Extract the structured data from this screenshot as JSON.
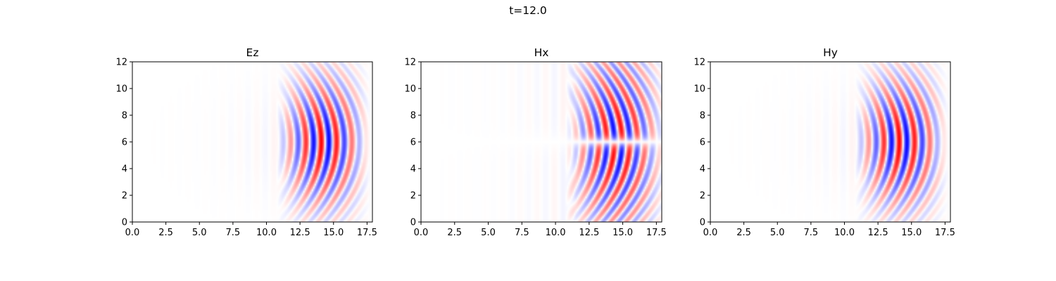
{
  "figure": {
    "suptitle": "t=12.0"
  },
  "chart_data": [
    {
      "type": "heatmap",
      "title": "Ez",
      "xlabel": "",
      "ylabel": "",
      "xlim": [
        0,
        17.9
      ],
      "ylim": [
        0,
        12
      ],
      "xticks": [
        0.0,
        2.5,
        5.0,
        7.5,
        10.0,
        12.5,
        15.0,
        17.5
      ],
      "xtick_labels": [
        "0.0",
        "2.5",
        "5.0",
        "7.5",
        "10.0",
        "12.5",
        "15.0",
        "17.5"
      ],
      "yticks": [
        0,
        2,
        4,
        6,
        8,
        10,
        12
      ],
      "ytick_labels": [
        "0",
        "2",
        "4",
        "6",
        "8",
        "10",
        "12"
      ],
      "colormap": "bwr",
      "field": {
        "wave_front_x": 11.5,
        "wave_end_x": 17.4,
        "center_y": 6.0,
        "wavelength": 1.15,
        "dominant_band_x": [
          12.5,
          17.0
        ],
        "peak_amplitude": 1.0,
        "sign_symmetry_about_center": "even"
      }
    },
    {
      "type": "heatmap",
      "title": "Hx",
      "xlabel": "",
      "ylabel": "",
      "xlim": [
        0,
        17.9
      ],
      "ylim": [
        0,
        12
      ],
      "xticks": [
        0.0,
        2.5,
        5.0,
        7.5,
        10.0,
        12.5,
        15.0,
        17.5
      ],
      "xtick_labels": [
        "0.0",
        "2.5",
        "5.0",
        "7.5",
        "10.0",
        "12.5",
        "15.0",
        "17.5"
      ],
      "yticks": [
        0,
        2,
        4,
        6,
        8,
        10,
        12
      ],
      "ytick_labels": [
        "0",
        "2",
        "4",
        "6",
        "8",
        "10",
        "12"
      ],
      "colormap": "bwr",
      "field": {
        "wave_front_x": 11.5,
        "wave_end_x": 17.9,
        "center_y": 6.0,
        "wavelength": 1.15,
        "dominant_band_x": [
          12.0,
          17.5
        ],
        "peak_amplitude": 1.0,
        "sign_symmetry_about_center": "odd"
      }
    },
    {
      "type": "heatmap",
      "title": "Hy",
      "xlabel": "",
      "ylabel": "",
      "xlim": [
        0,
        17.9
      ],
      "ylim": [
        0,
        12
      ],
      "xticks": [
        0.0,
        2.5,
        5.0,
        7.5,
        10.0,
        12.5,
        15.0,
        17.5
      ],
      "xtick_labels": [
        "0.0",
        "2.5",
        "5.0",
        "7.5",
        "10.0",
        "12.5",
        "15.0",
        "17.5"
      ],
      "yticks": [
        0,
        2,
        4,
        6,
        8,
        10,
        12
      ],
      "ytick_labels": [
        "0",
        "2",
        "4",
        "6",
        "8",
        "10",
        "12"
      ],
      "colormap": "bwr",
      "field": {
        "wave_front_x": 11.5,
        "wave_end_x": 17.4,
        "center_y": 6.0,
        "wavelength": 1.15,
        "dominant_band_x": [
          12.0,
          17.0
        ],
        "peak_amplitude": 1.0,
        "sign_symmetry_about_center": "even"
      }
    }
  ]
}
